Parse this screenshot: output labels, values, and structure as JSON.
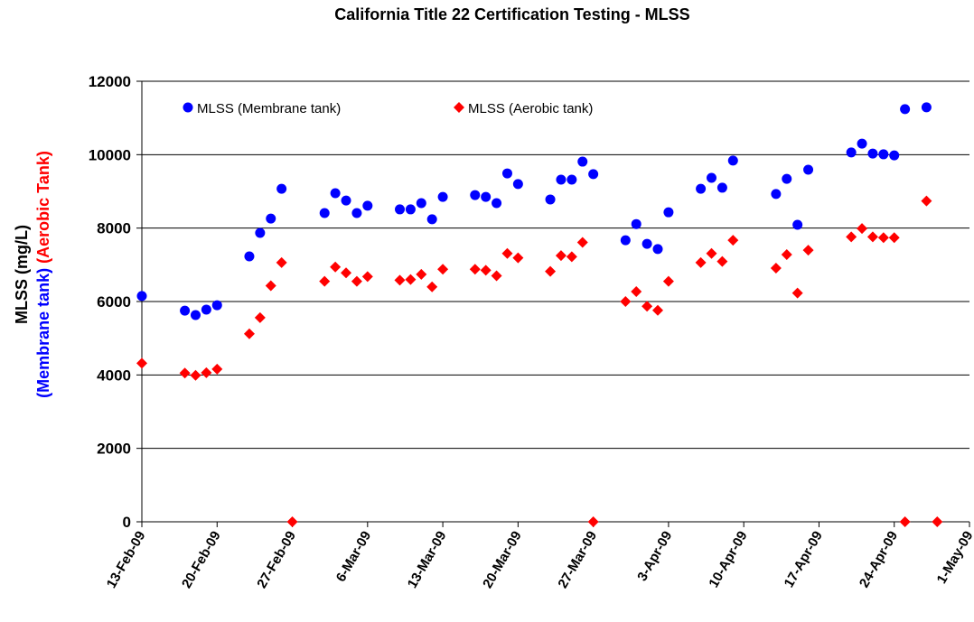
{
  "chart_data": {
    "type": "scatter",
    "title": "California Title 22 Certification Testing - MLSS",
    "ylabel": "MLSS (mg/L)",
    "ylabel_parts": [
      {
        "text": "(Membrane tank)",
        "color": "#0000ff"
      },
      {
        "text": "(Aerobic Tank)",
        "color": "#ff0000"
      }
    ],
    "xlim": [
      "2009-02-13",
      "2009-05-01"
    ],
    "xticks": [
      {
        "value": "2009-02-13",
        "label": "13-Feb-09"
      },
      {
        "value": "2009-02-20",
        "label": "20-Feb-09"
      },
      {
        "value": "2009-02-27",
        "label": "27-Feb-09"
      },
      {
        "value": "2009-03-06",
        "label": "6-Mar-09"
      },
      {
        "value": "2009-03-13",
        "label": "13-Mar-09"
      },
      {
        "value": "2009-03-20",
        "label": "20-Mar-09"
      },
      {
        "value": "2009-03-27",
        "label": "27-Mar-09"
      },
      {
        "value": "2009-04-03",
        "label": "3-Apr-09"
      },
      {
        "value": "2009-04-10",
        "label": "10-Apr-09"
      },
      {
        "value": "2009-04-17",
        "label": "17-Apr-09"
      },
      {
        "value": "2009-04-24",
        "label": "24-Apr-09"
      },
      {
        "value": "2009-05-01",
        "label": "1-May-09"
      }
    ],
    "ylim": [
      0,
      12000
    ],
    "yticks": [
      0,
      2000,
      4000,
      6000,
      8000,
      10000,
      12000
    ],
    "grid": true,
    "legend": "top-left",
    "series": [
      {
        "name": "MLSS (Membrane tank)",
        "color": "#0000ff",
        "marker": "circle",
        "x": [
          "2009-02-13",
          "2009-02-17",
          "2009-02-18",
          "2009-02-19",
          "2009-02-20",
          "2009-02-23",
          "2009-02-24",
          "2009-02-25",
          "2009-02-26",
          "2009-03-02",
          "2009-03-03",
          "2009-03-04",
          "2009-03-05",
          "2009-03-06",
          "2009-03-09",
          "2009-03-10",
          "2009-03-11",
          "2009-03-12",
          "2009-03-13",
          "2009-03-16",
          "2009-03-17",
          "2009-03-18",
          "2009-03-19",
          "2009-03-20",
          "2009-03-23",
          "2009-03-24",
          "2009-03-25",
          "2009-03-26",
          "2009-03-27",
          "2009-03-30",
          "2009-03-31",
          "2009-04-01",
          "2009-04-02",
          "2009-04-03",
          "2009-04-06",
          "2009-04-07",
          "2009-04-08",
          "2009-04-09",
          "2009-04-13",
          "2009-04-14",
          "2009-04-15",
          "2009-04-16",
          "2009-04-20",
          "2009-04-21",
          "2009-04-22",
          "2009-04-23",
          "2009-04-24",
          "2009-04-25",
          "2009-04-27"
        ],
        "values": [
          6150,
          5750,
          5630,
          5780,
          5900,
          7230,
          7870,
          8260,
          9070,
          8410,
          8950,
          8750,
          8410,
          8610,
          8510,
          8510,
          8680,
          8240,
          8850,
          8900,
          8850,
          8680,
          9490,
          9200,
          8780,
          9320,
          9320,
          9810,
          9470,
          7670,
          8110,
          7570,
          7430,
          8430,
          9070,
          9370,
          9100,
          9840,
          8930,
          9340,
          8090,
          9590,
          10060,
          10300,
          10030,
          10010,
          9980,
          11240,
          11290
        ]
      },
      {
        "name": "MLSS (Aerobic tank)",
        "color": "#ff0000",
        "marker": "diamond",
        "x": [
          "2009-02-13",
          "2009-02-17",
          "2009-02-18",
          "2009-02-19",
          "2009-02-20",
          "2009-02-23",
          "2009-02-24",
          "2009-02-25",
          "2009-02-26",
          "2009-02-27",
          "2009-03-02",
          "2009-03-03",
          "2009-03-04",
          "2009-03-05",
          "2009-03-06",
          "2009-03-09",
          "2009-03-10",
          "2009-03-11",
          "2009-03-12",
          "2009-03-13",
          "2009-03-16",
          "2009-03-17",
          "2009-03-18",
          "2009-03-19",
          "2009-03-20",
          "2009-03-23",
          "2009-03-24",
          "2009-03-25",
          "2009-03-26",
          "2009-03-27",
          "2009-03-30",
          "2009-03-31",
          "2009-04-01",
          "2009-04-02",
          "2009-04-03",
          "2009-04-06",
          "2009-04-07",
          "2009-04-08",
          "2009-04-09",
          "2009-04-13",
          "2009-04-14",
          "2009-04-15",
          "2009-04-16",
          "2009-04-20",
          "2009-04-21",
          "2009-04-22",
          "2009-04-23",
          "2009-04-24",
          "2009-04-25",
          "2009-04-27",
          "2009-04-28"
        ],
        "values": [
          4320,
          4050,
          3990,
          4060,
          4160,
          5120,
          5560,
          6430,
          7060,
          0,
          6550,
          6940,
          6780,
          6550,
          6680,
          6580,
          6600,
          6740,
          6400,
          6880,
          6880,
          6850,
          6700,
          7310,
          7190,
          6820,
          7250,
          7220,
          7610,
          0,
          6000,
          6270,
          5870,
          5760,
          6550,
          7060,
          7310,
          7090,
          7670,
          6910,
          7280,
          6230,
          7400,
          7760,
          7990,
          7760,
          7740,
          7740,
          0,
          8740,
          0
        ]
      }
    ]
  }
}
